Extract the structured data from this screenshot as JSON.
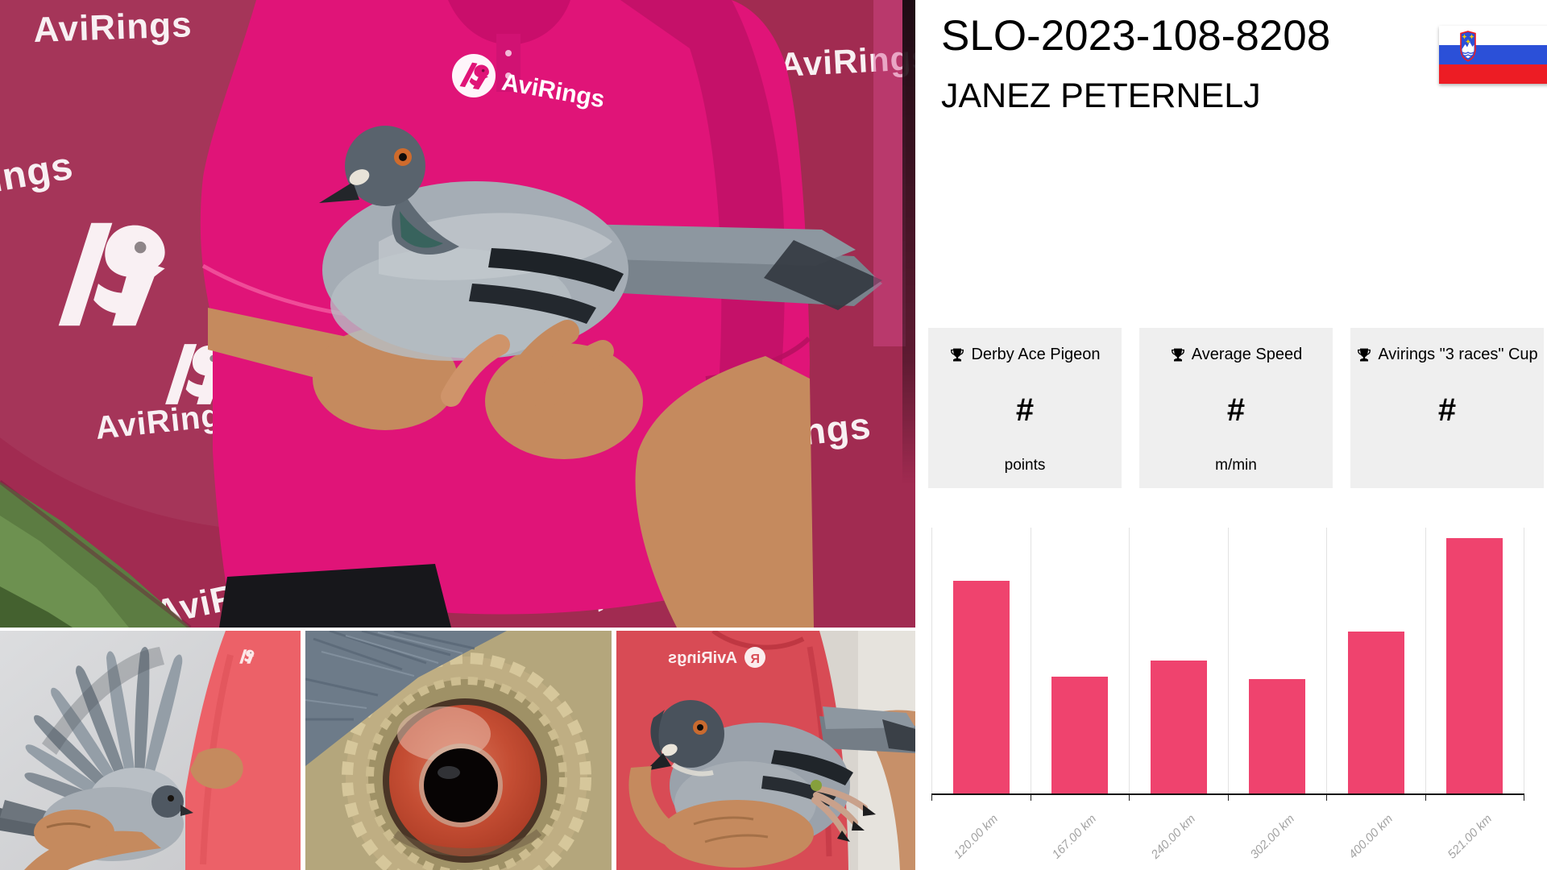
{
  "header": {
    "ring_id": "SLO-2023-108-8208",
    "fancier_name": "JANEZ PETERNELJ",
    "flag_country": "Slovenia"
  },
  "stat_cards": [
    {
      "icon": "trophy-icon",
      "title": "Derby Ace Pigeon",
      "value": "#",
      "unit": "points"
    },
    {
      "icon": "trophy-icon",
      "title": "Average Speed",
      "value": "#",
      "unit": "m/min"
    },
    {
      "icon": "trophy-icon",
      "title": "Avirings \"3 races\" Cup",
      "value": "#",
      "unit": ""
    }
  ],
  "chart_data": {
    "type": "bar",
    "title": "",
    "xlabel": "",
    "ylabel": "",
    "categories": [
      "120.00 km",
      "167.00 km",
      "240.00 km",
      "302.00 km",
      "400.00 km",
      "521.00 km"
    ],
    "values": [
      80,
      44,
      50,
      43,
      61,
      96
    ],
    "values_scale": "percent of plot height; y-axis has no visible labels",
    "ylim": [
      0,
      100
    ],
    "legend": "none",
    "grid": "vertical category gridlines only",
    "bar_color": "#ef436e",
    "axis_color": "#111111",
    "tick_label_color": "#a3a3a3"
  },
  "photos": {
    "brand_wordmark": "AviRings",
    "brand_letter": "R"
  },
  "colors": {
    "banner_magenta": "#a12b51",
    "shirt_pink": "#e01478",
    "flag_white": "#ffffff",
    "flag_blue": "#2b50d8",
    "flag_red": "#ed1c24"
  }
}
